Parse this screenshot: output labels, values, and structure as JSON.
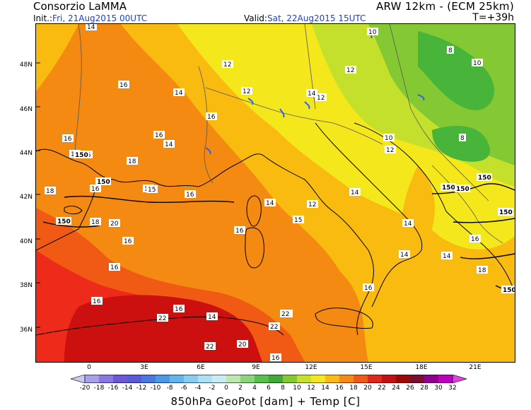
{
  "header": {
    "title_left": "Consorzio LaMMA",
    "title_right": "ARW 12km - (ECM 25km)",
    "init_label": "Init.:",
    "init_value": "Fri, 21Aug2015 00UTC",
    "valid_label": "Valid:",
    "valid_value": "Sat, 22Aug2015 15UTC",
    "lead_time": "T=+39h"
  },
  "map": {
    "lat_labels": [
      "48N",
      "46N",
      "44N",
      "42N",
      "40N",
      "38N",
      "36N"
    ],
    "lon_labels": [
      "0",
      "3E",
      "6E",
      "9E",
      "12E",
      "15E",
      "18E",
      "21E"
    ],
    "temperature_labels": [
      "14",
      "10",
      "8",
      "10",
      "12",
      "12",
      "16",
      "14",
      "12",
      "14",
      "12",
      "8",
      "16",
      "16",
      "14",
      "16",
      "16",
      "10",
      "12",
      "16",
      "18",
      "18",
      "16",
      "12",
      "15",
      "16",
      "14",
      "12",
      "14",
      "14",
      "16",
      "20",
      "18",
      "15",
      "16",
      "16",
      "14",
      "14",
      "16",
      "16",
      "16",
      "20",
      "16",
      "14",
      "22",
      "22",
      "22",
      "22",
      "22",
      "16",
      "18"
    ],
    "geopot_labels": [
      "150",
      "150",
      "150",
      "150",
      "150",
      "150",
      "150",
      "150"
    ],
    "colors": {
      "temp_22": "#cc1010",
      "temp_20": "#ee2a1a",
      "temp_18": "#f05a14",
      "temp_16": "#f58a12",
      "temp_14": "#f9bb10",
      "temp_12": "#f4e81c",
      "temp_10": "#c4e02c",
      "temp_8": "#88cc32",
      "temp_6": "#48b43a",
      "land_outline": "#000000",
      "border_outline": "#555555",
      "water": "#2f5cff"
    }
  },
  "colorbar": {
    "ticks": [
      "-20",
      "-18",
      "-16",
      "-14",
      "-12",
      "-10",
      "-8",
      "-6",
      "-4",
      "-2",
      "0",
      "2",
      "4",
      "6",
      "8",
      "10",
      "12",
      "14",
      "16",
      "18",
      "20",
      "22",
      "24",
      "26",
      "28",
      "30",
      "32"
    ],
    "colors": [
      "#c8c8f0",
      "#a8a0e8",
      "#8878e0",
      "#6a58d6",
      "#5a5ad8",
      "#4a78e0",
      "#4c98e8",
      "#64b4ec",
      "#88ccf0",
      "#ace0f4",
      "#c8ecf6",
      "#bde6b0",
      "#8cd47c",
      "#58be4c",
      "#40a83c",
      "#84c834",
      "#c4e02c",
      "#f4e81c",
      "#f9bb10",
      "#f58a12",
      "#f05a14",
      "#e02818",
      "#c41010",
      "#a00808",
      "#7a0e2e",
      "#900090",
      "#c000c0",
      "#e040e0"
    ]
  },
  "footer": {
    "caption": "850hPa GeoPot [dam] + Temp [C]"
  }
}
